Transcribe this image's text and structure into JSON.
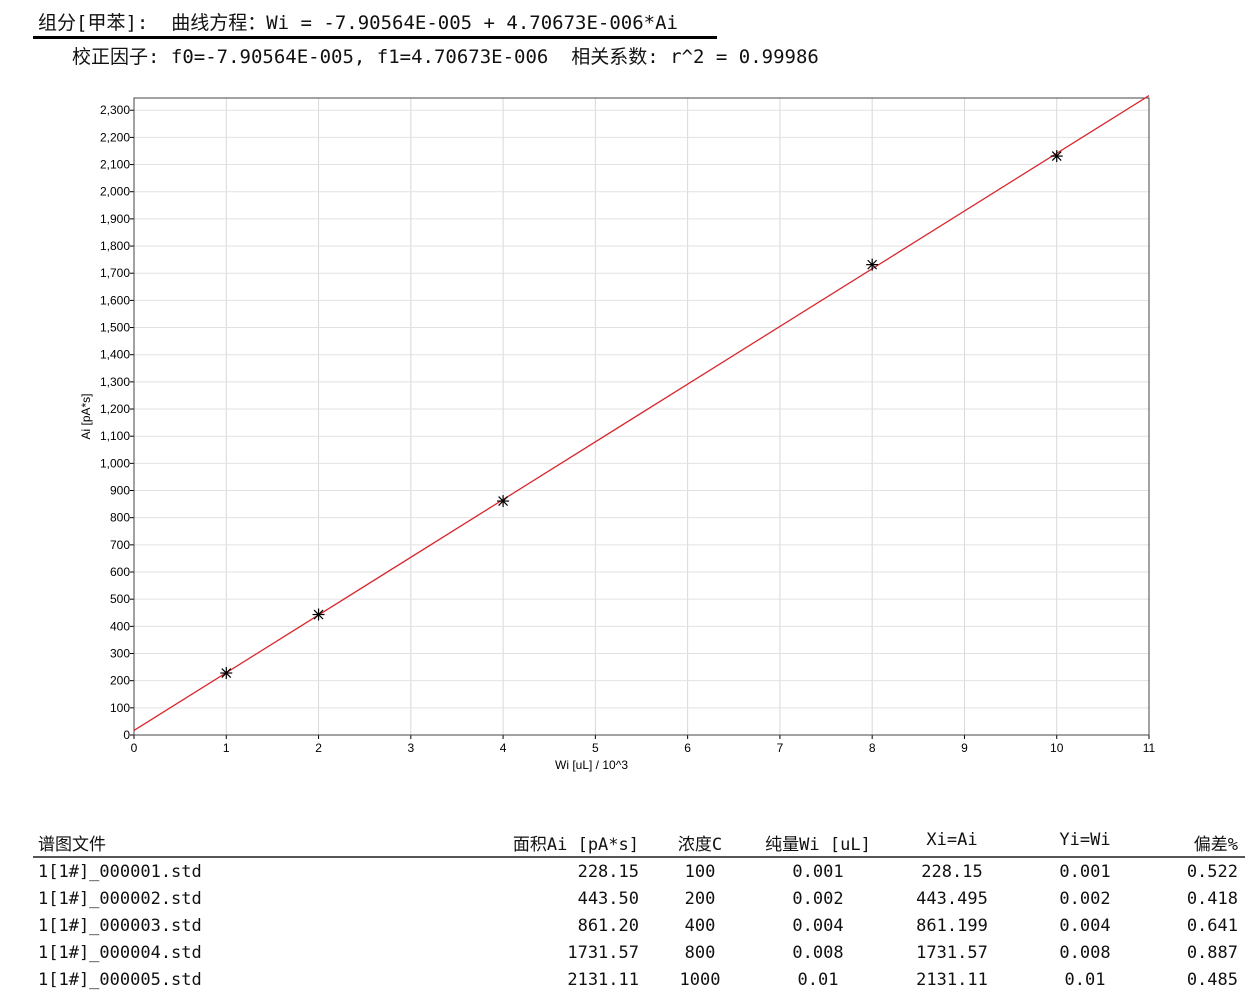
{
  "header": {
    "line1": "组分[甲苯]:  曲线方程：Wi = -7.90564E-005 + 4.70673E-006*Ai",
    "line2": "校正因子: f0=-7.90564E-005, f1=4.70673E-006  相关系数: r^2 = 0.99986"
  },
  "chart_data": {
    "type": "scatter",
    "xlabel": "Wi [uL] / 10^3",
    "ylabel": "Ai [pA*s]",
    "xlim": [
      0,
      11
    ],
    "ylim": [
      0,
      2345
    ],
    "xticks": [
      0,
      1,
      2,
      3,
      4,
      5,
      6,
      7,
      8,
      9,
      10,
      11
    ],
    "yticks": [
      0,
      100,
      200,
      300,
      400,
      500,
      600,
      700,
      800,
      900,
      1000,
      1100,
      1200,
      1300,
      1400,
      1500,
      1600,
      1700,
      1800,
      1900,
      2000,
      2100,
      2200,
      2300
    ],
    "grid": true,
    "points": [
      {
        "x": 1,
        "y": 228.15
      },
      {
        "x": 2,
        "y": 443.5
      },
      {
        "x": 4,
        "y": 861.2
      },
      {
        "x": 8,
        "y": 1731.57
      },
      {
        "x": 10,
        "y": 2131.11
      }
    ],
    "fit_line": {
      "f0": -7.90564e-05,
      "f1": 4.70673e-06,
      "color": "#d9262b"
    },
    "marker": "asterisk",
    "marker_color": "#000000"
  },
  "table": {
    "headers": [
      "谱图文件",
      "面积Ai [pA*s]",
      "浓度C",
      "纯量Wi [uL]",
      "Xi=Ai",
      "Yi=Wi",
      "偏差%"
    ],
    "rows": [
      [
        "1[1#]_000001.std",
        "228.15",
        "100",
        "0.001",
        "228.15",
        "0.001",
        "0.522"
      ],
      [
        "1[1#]_000002.std",
        "443.50",
        "200",
        "0.002",
        "443.495",
        "0.002",
        "0.418"
      ],
      [
        "1[1#]_000003.std",
        "861.20",
        "400",
        "0.004",
        "861.199",
        "0.004",
        "0.641"
      ],
      [
        "1[1#]_000004.std",
        "1731.57",
        "800",
        "0.008",
        "1731.57",
        "0.008",
        "0.887"
      ],
      [
        "1[1#]_000005.std",
        "2131.11",
        "1000",
        "0.01",
        "2131.11",
        "0.01",
        "0.485"
      ]
    ]
  }
}
